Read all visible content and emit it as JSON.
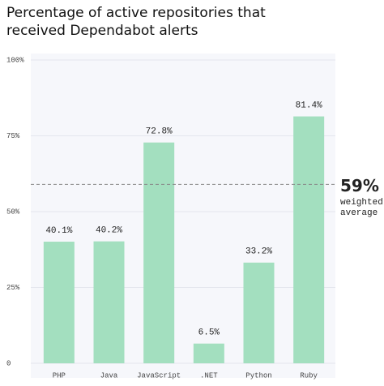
{
  "chart_data": {
    "type": "bar",
    "title": [
      "Percentage of active repositories that",
      "received Dependabot alerts"
    ],
    "categories": [
      "PHP",
      "Java",
      "JavaScript",
      ".NET",
      "Python",
      "Ruby"
    ],
    "values": [
      40.1,
      40.2,
      72.8,
      6.5,
      33.2,
      81.4
    ],
    "value_labels": [
      "40.1%",
      "40.2%",
      "72.8%",
      "6.5%",
      "33.2%",
      "81.4%"
    ],
    "color": "#a3dfbf",
    "ylim": [
      0,
      100
    ],
    "yticks": [
      0,
      {
        "value": 25,
        "label": "25%"
      },
      {
        "value": 50,
        "label": "50%"
      },
      {
        "value": 75,
        "label": "75%"
      },
      {
        "value": 100,
        "label": "100%"
      }
    ],
    "grid": true,
    "reference_line": {
      "value": 59,
      "label": "59%",
      "text": [
        "weighted",
        "average"
      ]
    }
  }
}
